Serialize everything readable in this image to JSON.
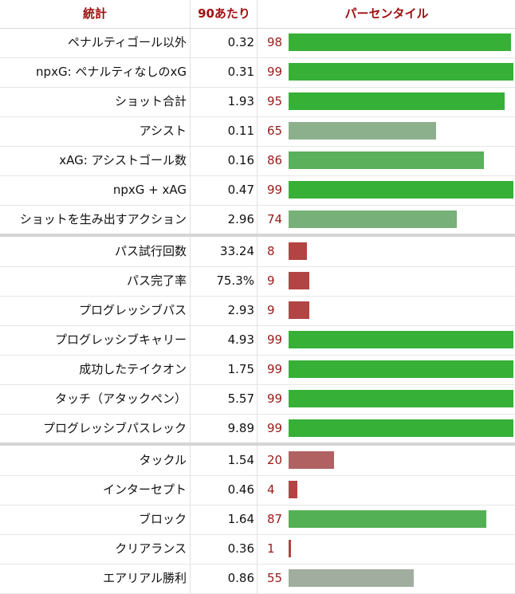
{
  "header": {
    "stat": "統計",
    "per90": "90あたり",
    "percentile": "パーセンタイル"
  },
  "groups": [
    {
      "rows": [
        {
          "stat": "ペナルティゴール以外",
          "per90": "0.32",
          "pct": 98,
          "color": "#36b037"
        },
        {
          "stat": "npxG: ペナルティなしのxG",
          "per90": "0.31",
          "pct": 99,
          "color": "#36b037"
        },
        {
          "stat": "ショット合計",
          "per90": "1.93",
          "pct": 95,
          "color": "#36b037"
        },
        {
          "stat": "アシスト",
          "per90": "0.11",
          "pct": 65,
          "color": "#8db08c"
        },
        {
          "stat": "xAG: アシストゴール数",
          "per90": "0.16",
          "pct": 86,
          "color": "#5bb05c"
        },
        {
          "stat": "npxG + xAG",
          "per90": "0.47",
          "pct": 99,
          "color": "#36b037"
        },
        {
          "stat": "ショットを生み出すアクション",
          "per90": "2.96",
          "pct": 74,
          "color": "#77b078"
        }
      ]
    },
    {
      "rows": [
        {
          "stat": "パス試行回数",
          "per90": "33.24",
          "pct": 8,
          "color": "#b34444"
        },
        {
          "stat": "パス完了率",
          "per90": "75.3%",
          "pct": 9,
          "color": "#b34444"
        },
        {
          "stat": "プログレッシブパス",
          "per90": "2.93",
          "pct": 9,
          "color": "#b34444"
        },
        {
          "stat": "プログレッシブキャリー",
          "per90": "4.93",
          "pct": 99,
          "color": "#36b037"
        },
        {
          "stat": "成功したテイクオン",
          "per90": "1.75",
          "pct": 99,
          "color": "#36b037"
        },
        {
          "stat": "タッチ（アタックペン）",
          "per90": "5.57",
          "pct": 99,
          "color": "#36b037"
        },
        {
          "stat": "プログレッシブパスレック",
          "per90": "9.89",
          "pct": 99,
          "color": "#36b037"
        }
      ]
    },
    {
      "rows": [
        {
          "stat": "タックル",
          "per90": "1.54",
          "pct": 20,
          "color": "#b06262"
        },
        {
          "stat": "インターセプト",
          "per90": "0.46",
          "pct": 4,
          "color": "#b34444"
        },
        {
          "stat": "ブロック",
          "per90": "1.64",
          "pct": 87,
          "color": "#54b055"
        },
        {
          "stat": "クリアランス",
          "per90": "0.36",
          "pct": 1,
          "color": "#b34444"
        },
        {
          "stat": "エアリアル勝利",
          "per90": "0.86",
          "pct": 55,
          "color": "#a0ad9f"
        }
      ]
    }
  ]
}
